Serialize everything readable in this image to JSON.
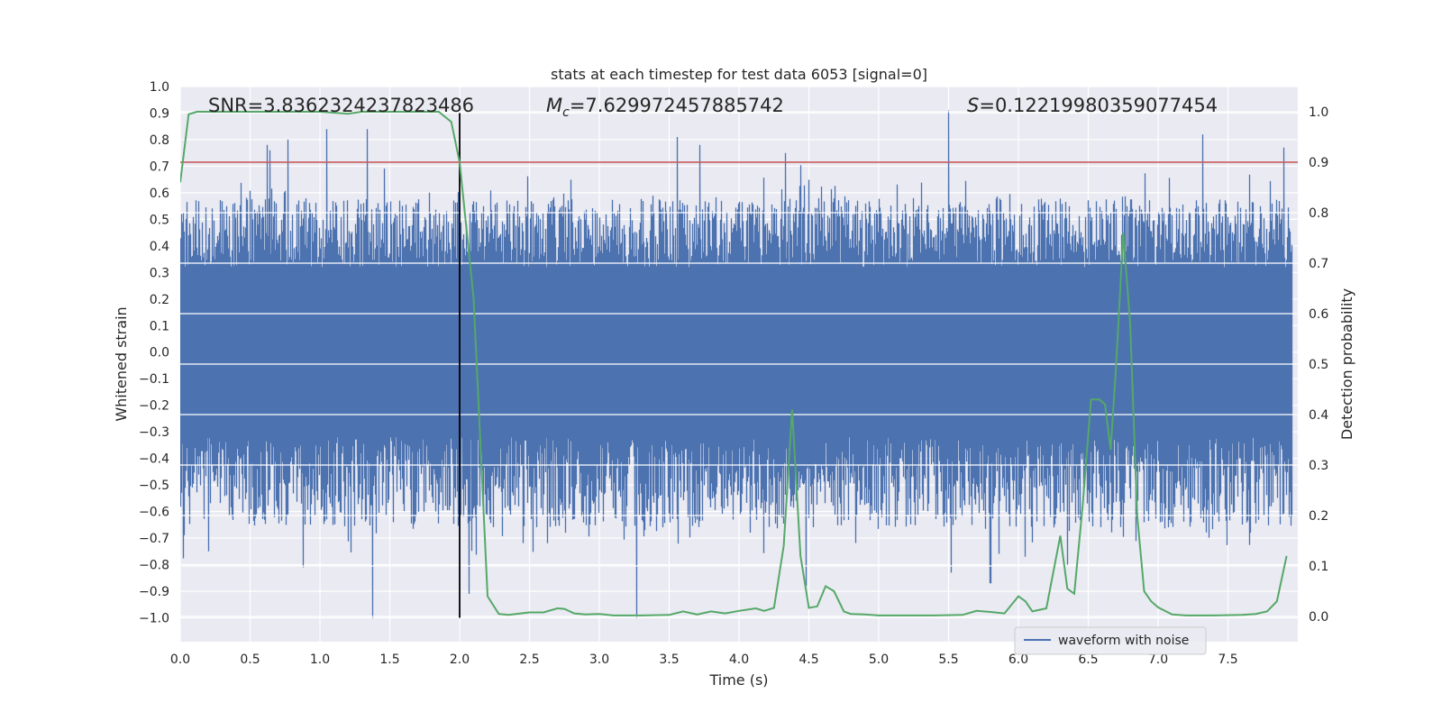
{
  "chart_data": {
    "type": "line",
    "title": "stats at each timestep for test data 6053 [signal=0]",
    "xlabel": "Time (s)",
    "ylabel_left": "Whitened strain",
    "ylabel_right": "Detection probability",
    "xlim": [
      0.0,
      8.0
    ],
    "ylim_left": [
      -1.09,
      1.0
    ],
    "ylim_right": [
      -0.05,
      1.05
    ],
    "x_ticks": [
      0.0,
      0.5,
      1.0,
      1.5,
      2.0,
      2.5,
      3.0,
      3.5,
      4.0,
      4.5,
      5.0,
      5.5,
      6.0,
      6.5,
      7.0,
      7.5
    ],
    "x_tick_labels": [
      "0.0",
      "0.5",
      "1.0",
      "1.5",
      "2.0",
      "2.5",
      "3.0",
      "3.5",
      "4.0",
      "4.5",
      "5.0",
      "5.5",
      "6.0",
      "6.5",
      "7.0",
      "7.5"
    ],
    "y_left_ticks": [
      1.0,
      0.9,
      0.8,
      0.7,
      0.6,
      0.5,
      0.4,
      0.3,
      0.2,
      0.1,
      0.0,
      -0.1,
      -0.2,
      -0.3,
      -0.4,
      -0.5,
      -0.6,
      -0.7,
      -0.8,
      -0.9,
      -1.0
    ],
    "y_left_tick_labels": [
      "1.0",
      "0.9",
      "0.8",
      "0.7",
      "0.6",
      "0.5",
      "0.4",
      "0.3",
      "0.2",
      "0.1",
      "0.0",
      "−0.1",
      "−0.2",
      "−0.3",
      "−0.4",
      "−0.5",
      "−0.6",
      "−0.7",
      "−0.8",
      "−0.9",
      "−1.0"
    ],
    "y_right_ticks": [
      1.0,
      0.9,
      0.8,
      0.7,
      0.6,
      0.5,
      0.4,
      0.3,
      0.2,
      0.1,
      0.0
    ],
    "y_right_tick_labels": [
      "1.0",
      "0.9",
      "0.8",
      "0.7",
      "0.6",
      "0.5",
      "0.4",
      "0.3",
      "0.2",
      "0.1",
      "0.0"
    ],
    "grid": true,
    "legend": {
      "position": "bottom-right",
      "entries": [
        "waveform with noise"
      ]
    },
    "annotations": {
      "snr": "SNR=3.8362324237823486",
      "mc_symbol": "M",
      "mc_sub": "c",
      "mc_value": "=7.629972457885742",
      "s_symbol": "S",
      "s_value": "=0.12219980359077454"
    },
    "threshold_right": 0.9,
    "vline_x": 2.0,
    "waveform": {
      "name": "waveform with noise",
      "color": "#4c72b0",
      "sample_rate": 2048,
      "core_amplitude": 0.32,
      "typical_peak_max": 0.58,
      "typical_trough_min": -0.66,
      "max": 0.91,
      "min": -1.0,
      "peaks": [
        {
          "x": 0.62,
          "y": 0.78
        },
        {
          "x": 0.64,
          "y": 0.76
        },
        {
          "x": 0.77,
          "y": 0.8
        },
        {
          "x": 1.05,
          "y": 0.84
        },
        {
          "x": 1.34,
          "y": 0.84
        },
        {
          "x": 3.56,
          "y": 0.81
        },
        {
          "x": 3.72,
          "y": 0.78
        },
        {
          "x": 4.33,
          "y": 0.75
        },
        {
          "x": 5.5,
          "y": 0.91
        },
        {
          "x": 7.32,
          "y": 0.82
        },
        {
          "x": 7.9,
          "y": 0.77
        }
      ],
      "troughs": [
        {
          "x": 0.2,
          "y": -0.75
        },
        {
          "x": 0.88,
          "y": -0.81
        },
        {
          "x": 1.38,
          "y": -1.0
        },
        {
          "x": 2.07,
          "y": -0.91
        },
        {
          "x": 3.27,
          "y": -1.0
        },
        {
          "x": 4.48,
          "y": -0.88
        },
        {
          "x": 5.52,
          "y": -0.83
        },
        {
          "x": 5.8,
          "y": -0.87
        },
        {
          "x": 6.05,
          "y": -0.77
        },
        {
          "x": 6.35,
          "y": -0.8
        }
      ]
    },
    "probability": {
      "color": "#55a868",
      "x": [
        0.0,
        0.06,
        0.12,
        0.25,
        0.5,
        0.75,
        1.0,
        1.2,
        1.3,
        1.5,
        1.7,
        1.85,
        1.94,
        2.0,
        2.1,
        2.2,
        2.28,
        2.35,
        2.5,
        2.6,
        2.7,
        2.75,
        2.82,
        2.9,
        3.0,
        3.1,
        3.2,
        3.3,
        3.5,
        3.6,
        3.7,
        3.8,
        3.9,
        4.0,
        4.12,
        4.18,
        4.25,
        4.32,
        4.38,
        4.44,
        4.5,
        4.56,
        4.62,
        4.68,
        4.75,
        4.8,
        4.9,
        5.0,
        5.2,
        5.4,
        5.6,
        5.7,
        5.8,
        5.9,
        6.0,
        6.05,
        6.1,
        6.2,
        6.3,
        6.35,
        6.4,
        6.46,
        6.52,
        6.58,
        6.62,
        6.66,
        6.7,
        6.75,
        6.8,
        6.85,
        6.9,
        6.95,
        7.0,
        7.1,
        7.2,
        7.4,
        7.6,
        7.7,
        7.78,
        7.85,
        7.92
      ],
      "y": [
        0.86,
        0.995,
        1.0,
        1.0,
        1.0,
        1.0,
        1.0,
        0.996,
        1.0,
        1.0,
        1.0,
        1.0,
        0.98,
        0.9,
        0.63,
        0.04,
        0.005,
        0.003,
        0.008,
        0.008,
        0.016,
        0.015,
        0.006,
        0.004,
        0.005,
        0.002,
        0.002,
        0.002,
        0.003,
        0.01,
        0.004,
        0.01,
        0.006,
        0.011,
        0.016,
        0.011,
        0.017,
        0.14,
        0.41,
        0.12,
        0.017,
        0.02,
        0.06,
        0.05,
        0.01,
        0.005,
        0.004,
        0.002,
        0.002,
        0.002,
        0.003,
        0.011,
        0.009,
        0.006,
        0.04,
        0.03,
        0.01,
        0.016,
        0.16,
        0.055,
        0.045,
        0.22,
        0.43,
        0.43,
        0.42,
        0.33,
        0.5,
        0.76,
        0.58,
        0.2,
        0.05,
        0.03,
        0.018,
        0.004,
        0.002,
        0.002,
        0.003,
        0.005,
        0.01,
        0.03,
        0.12
      ]
    }
  }
}
